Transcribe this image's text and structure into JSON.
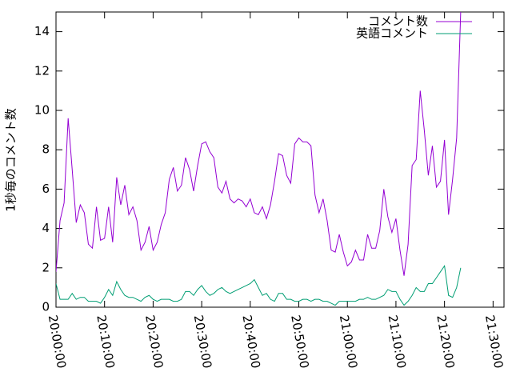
{
  "chart_data": {
    "type": "line",
    "y_label": "1秒毎のコメント数",
    "x": [
      "20:00:00",
      "20:00:50",
      "20:01:40",
      "20:02:30",
      "20:03:20",
      "20:04:10",
      "20:05:00",
      "20:05:50",
      "20:06:40",
      "20:07:30",
      "20:08:20",
      "20:09:10",
      "20:10:00",
      "20:10:50",
      "20:11:40",
      "20:12:30",
      "20:13:20",
      "20:14:10",
      "20:15:00",
      "20:15:50",
      "20:16:40",
      "20:17:30",
      "20:18:20",
      "20:19:10",
      "20:20:00",
      "20:20:50",
      "20:21:40",
      "20:22:30",
      "20:23:20",
      "20:24:10",
      "20:25:00",
      "20:25:50",
      "20:26:40",
      "20:27:30",
      "20:28:20",
      "20:29:10",
      "20:30:00",
      "20:30:50",
      "20:31:40",
      "20:32:30",
      "20:33:20",
      "20:34:10",
      "20:35:00",
      "20:35:50",
      "20:36:40",
      "20:37:30",
      "20:38:20",
      "20:39:10",
      "20:40:00",
      "20:40:50",
      "20:41:40",
      "20:42:30",
      "20:43:20",
      "20:44:10",
      "20:45:00",
      "20:45:50",
      "20:46:40",
      "20:47:30",
      "20:48:20",
      "20:49:10",
      "20:50:00",
      "20:50:50",
      "20:51:40",
      "20:52:30",
      "20:53:20",
      "20:54:10",
      "20:55:00",
      "20:55:50",
      "20:56:40",
      "20:57:30",
      "20:58:20",
      "20:59:10",
      "21:00:00",
      "21:00:50",
      "21:01:40",
      "21:02:30",
      "21:03:20",
      "21:04:10",
      "21:05:00",
      "21:05:50",
      "21:06:40",
      "21:07:30",
      "21:08:20",
      "21:09:10",
      "21:10:00",
      "21:10:50",
      "21:11:40",
      "21:12:30",
      "21:13:20",
      "21:14:10",
      "21:15:00",
      "21:15:50",
      "21:16:40",
      "21:17:30",
      "21:18:20",
      "21:19:10",
      "21:20:00",
      "21:20:50",
      "21:21:40",
      "21:22:30",
      "21:23:20"
    ],
    "series": [
      {
        "name": "コメント数",
        "color": "#9400d3",
        "values": [
          1.8,
          4.4,
          5.3,
          9.6,
          7.0,
          4.3,
          5.2,
          4.8,
          3.2,
          3.0,
          5.1,
          3.4,
          3.5,
          5.1,
          3.3,
          6.6,
          5.2,
          6.2,
          4.7,
          5.1,
          4.4,
          2.9,
          3.3,
          4.1,
          2.9,
          3.3,
          4.2,
          4.8,
          6.5,
          7.1,
          5.9,
          6.2,
          7.6,
          7.0,
          5.9,
          7.2,
          8.3,
          8.4,
          7.9,
          7.6,
          6.1,
          5.8,
          6.4,
          5.5,
          5.3,
          5.5,
          5.4,
          5.1,
          5.5,
          4.8,
          4.7,
          5.1,
          4.5,
          5.2,
          6.4,
          7.8,
          7.7,
          6.7,
          6.3,
          8.3,
          8.6,
          8.4,
          8.4,
          8.2,
          5.7,
          4.8,
          5.5,
          4.4,
          2.9,
          2.8,
          3.7,
          2.8,
          2.1,
          2.3,
          2.9,
          2.4,
          2.4,
          3.7,
          3.0,
          3.0,
          3.9,
          6.0,
          4.6,
          3.8,
          4.5,
          2.9,
          1.6,
          3.2,
          7.2,
          7.5,
          11,
          9,
          6.7,
          8.2,
          6.1,
          6.4,
          8.5,
          4.7,
          6.5,
          8.6,
          15
        ]
      },
      {
        "name": "英語コメント",
        "color": "#009e73",
        "values": [
          1.2,
          0.4,
          0.4,
          0.4,
          0.7,
          0.4,
          0.5,
          0.5,
          0.3,
          0.3,
          0.3,
          0.2,
          0.5,
          0.9,
          0.6,
          1.3,
          0.9,
          0.6,
          0.5,
          0.5,
          0.4,
          0.3,
          0.5,
          0.6,
          0.4,
          0.3,
          0.4,
          0.4,
          0.4,
          0.3,
          0.3,
          0.4,
          0.8,
          0.8,
          0.6,
          0.9,
          1.1,
          0.8,
          0.6,
          0.7,
          0.9,
          1.0,
          0.8,
          0.7,
          0.8,
          0.9,
          1.0,
          1.1,
          1.2,
          1.4,
          1.0,
          0.6,
          0.7,
          0.4,
          0.3,
          0.7,
          0.7,
          0.4,
          0.4,
          0.3,
          0.3,
          0.4,
          0.4,
          0.3,
          0.4,
          0.4,
          0.3,
          0.3,
          0.2,
          0.1,
          0.3,
          0.3,
          0.3,
          0.3,
          0.3,
          0.4,
          0.4,
          0.5,
          0.4,
          0.4,
          0.5,
          0.6,
          0.9,
          0.8,
          0.8,
          0.4,
          0.1,
          0.3,
          0.6,
          1.0,
          0.8,
          0.8,
          1.2,
          1.2,
          1.5,
          1.8,
          2.1,
          0.6,
          0.5,
          1.0,
          2.0
        ]
      }
    ],
    "xlim": [
      "20:00:00",
      "21:32:15"
    ],
    "xticks": [
      "20:00:00",
      "20:10:00",
      "20:20:00",
      "20:30:00",
      "20:40:00",
      "20:50:00",
      "21:00:00",
      "21:10:00",
      "21:20:00",
      "21:30:00"
    ],
    "ylim": [
      0,
      15
    ],
    "yticks": [
      0,
      2,
      4,
      6,
      8,
      10,
      12,
      14
    ],
    "legend": "top-right"
  }
}
